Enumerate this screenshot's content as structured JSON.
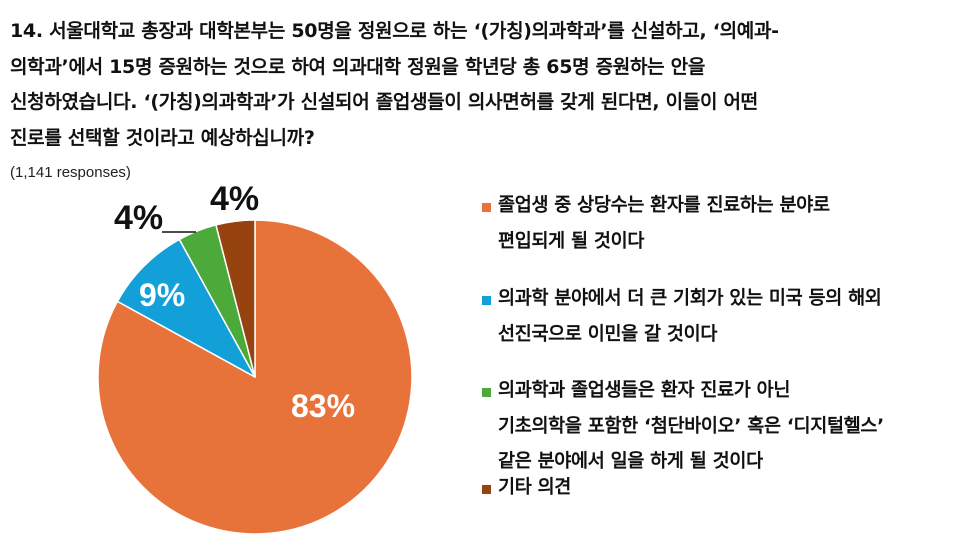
{
  "question": {
    "lines": [
      "14. 서울대학교 총장과 대학본부는 50명을 정원으로 하는 ‘(가칭)의과학과’를 신설하고, ‘의예과-",
      "의학과’에서 15명 증원하는 것으로 하여 의과대학 정원을 학년당 총 65명 증원하는 안을",
      "신청하였습니다. ‘(가칭)의과학과’가 신설되어 졸업생들이 의사면허를 갖게 된다면, 이들이 어떤",
      "진로를 선택할 것이라고 예상하십니까?"
    ],
    "responses": "(1,141 responses)"
  },
  "chart_data": {
    "type": "pie",
    "title": "14. 서울대학교 총장과 대학본부는 50명을 정원으로 하는 ‘(가칭)의과학과’를 신설하고, ‘의예과-의학과’에서 15명 증원하는 것으로 하여 의과대학 정원을 학년당 총 65명 증원하는 안을 신청하였습니다. ‘(가칭)의과학과’가 신설되어 졸업생들이 의사면허를 갖게 된다면, 이들이 어떤 진로를 선택할 것이라고 예상하십니까?",
    "subtitle": "(1,141 responses)",
    "categories": [
      "졸업생 중 상당수는 환자를 진료하는 분야로 편입되게 될 것이다",
      "의과학 분야에서 더 큰 기회가 있는 미국 등의 해외 선진국으로 이민을 갈 것이다",
      "의과학과 졸업생들은 환자 진료가 아닌 기초의학을 포함한 ‘첨단바이오’ 혹은 ‘디지털헬스’ 같은 분야에서 일을 하게 될 것이다",
      "기타 의견"
    ],
    "values": [
      83,
      9,
      4,
      4
    ],
    "labels": [
      "83%",
      "9%",
      "4%",
      "4%"
    ],
    "colors": [
      "#E8733A",
      "#139FD8",
      "#4BAA3A",
      "#96430F"
    ],
    "legend_position": "right"
  },
  "pie": {
    "labels": {
      "orange": "83%",
      "blue": "9%",
      "green": "4%",
      "brown": "4%"
    }
  },
  "legend": {
    "items": [
      {
        "lines": [
          "졸업생 중 상당수는 환자를 진료하는 분야로",
          "편입되게 될 것이다"
        ],
        "color": "#E8733A"
      },
      {
        "lines": [
          "의과학 분야에서 더 큰 기회가 있는 미국 등의 해외",
          "선진국으로 이민을 갈 것이다"
        ],
        "color": "#139FD8"
      },
      {
        "lines": [
          "의과학과 졸업생들은 환자 진료가 아닌",
          "기초의학을 포함한 ‘첨단바이오’ 혹은 ‘디지털헬스’",
          "같은 분야에서 일을 하게 될 것이다"
        ],
        "color": "#4BAA3A"
      },
      {
        "lines": [
          "기타 의견"
        ],
        "color": "#96430F"
      }
    ]
  }
}
